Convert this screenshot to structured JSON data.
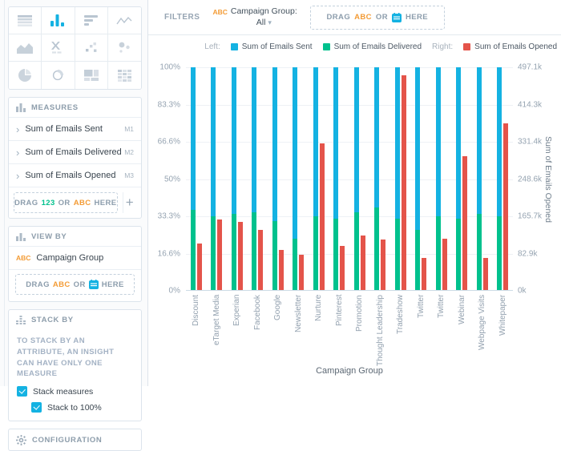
{
  "colors": {
    "accent": "#14b2e2",
    "sent": "#14b2e2",
    "delivered": "#00c18d",
    "opened": "#e4544a",
    "tag_abc": "#f39b35",
    "tag_num": "#00c18d"
  },
  "viz_icons": [
    "table",
    "column-chart",
    "bar-chart",
    "line-chart",
    "area-chart",
    "headline",
    "scatter-plot",
    "bubble-chart",
    "pie-chart",
    "donut-chart",
    "treemap",
    "heatmap"
  ],
  "viz_selected": "column-chart",
  "measures_panel": {
    "title": "MEASURES",
    "items": [
      {
        "name": "Sum of Emails Sent",
        "tag": "M1"
      },
      {
        "name": "Sum of Emails Delivered",
        "tag": "M2"
      },
      {
        "name": "Sum of Emails Opened",
        "tag": "M3"
      }
    ],
    "drop_zone": {
      "prefix": "DRAG",
      "token1": "123",
      "middle": "OR",
      "token2": "ABC",
      "suffix": "HERE"
    },
    "add_label": "+"
  },
  "view_by_panel": {
    "title": "VIEW BY",
    "items": [
      {
        "tag": "ABC",
        "name": "Campaign Group"
      }
    ],
    "drop_zone": {
      "prefix": "DRAG",
      "token1": "ABC",
      "middle": "OR",
      "suffix": "HERE"
    }
  },
  "stack_by_panel": {
    "title": "STACK BY",
    "note": "TO STACK BY AN ATTRIBUTE, AN INSIGHT CAN HAVE ONLY ONE MEASURE",
    "checkboxes": [
      {
        "label": "Stack measures",
        "checked": true,
        "indent": false
      },
      {
        "label": "Stack to 100%",
        "checked": true,
        "indent": true
      }
    ]
  },
  "configuration_panel": {
    "title": "CONFIGURATION"
  },
  "filters_bar": {
    "label": "FILTERS",
    "chip": {
      "tag": "ABC",
      "line1": "Campaign Group:",
      "line2": "All"
    },
    "drop_zone": {
      "prefix": "DRAG",
      "token1": "ABC",
      "middle": "OR",
      "suffix": "HERE"
    }
  },
  "legend": {
    "left_prefix": "Left:",
    "right_prefix": "Right:",
    "left_items": [
      {
        "label": "Sum of Emails Sent",
        "color": "#14b2e2"
      },
      {
        "label": "Sum of Emails Delivered",
        "color": "#00c18d"
      }
    ],
    "right_items": [
      {
        "label": "Sum of Emails Opened",
        "color": "#e4544a"
      }
    ]
  },
  "chart_data": {
    "type": "bar",
    "stacked_to_100": true,
    "title": "",
    "xlabel": "Campaign Group",
    "categories": [
      "Discount",
      "eTarget Media",
      "Experian",
      "Facebook",
      "Google",
      "Newsletter",
      "Nurture",
      "Pinterest",
      "Promotion",
      "Thought Leadership",
      "Tradeshow",
      "Twitter",
      "Twitter",
      "Webinar",
      "Webpage Visits",
      "Whitepaper"
    ],
    "series": [
      {
        "name": "Sum of Emails Sent",
        "axis": "left",
        "unit": "% of stack",
        "color": "#14b2e2",
        "values_pct": [
          64,
          67,
          66,
          65,
          69,
          77,
          67,
          68,
          65,
          63,
          68,
          73,
          67,
          68,
          66,
          67
        ]
      },
      {
        "name": "Sum of Emails Delivered",
        "axis": "left",
        "unit": "% of stack",
        "color": "#00c18d",
        "values_pct": [
          36,
          33,
          34,
          35,
          31,
          23,
          33,
          32,
          35,
          37,
          32,
          27,
          33,
          32,
          34,
          33
        ]
      },
      {
        "name": "Sum of Emails Opened",
        "axis": "right",
        "unit": "thousands",
        "color": "#e4544a",
        "values_k": [
          103,
          158,
          152,
          135,
          89,
          78,
          328,
          98,
          121,
          113,
          479,
          71,
          115,
          299,
          71,
          372
        ]
      }
    ],
    "left_axis": {
      "ticks": [
        "100%",
        "83.3%",
        "66.6%",
        "50%",
        "33.3%",
        "16.6%",
        "0%"
      ],
      "max_pct": 100
    },
    "right_axis": {
      "title": "Sum of Emails Opened",
      "ticks": [
        "497.1k",
        "414.3k",
        "331.4k",
        "248.6k",
        "165.7k",
        "82.9k",
        "0k"
      ],
      "max_k": 497.1
    },
    "grid": true,
    "legend_position": "top-right"
  }
}
